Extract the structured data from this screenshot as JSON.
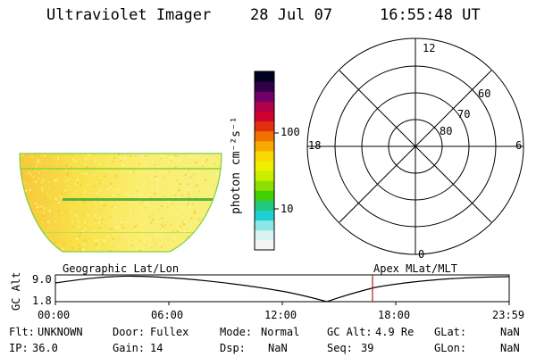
{
  "header": {
    "title": "Ultraviolet Imager",
    "date": "28 Jul 07",
    "time": "16:55:48 UT"
  },
  "colorbar": {
    "label": "photon cm⁻²s⁻¹",
    "ticks": [
      "100",
      "10"
    ],
    "colors": [
      "#f4f4f4",
      "#d9f2f2",
      "#8fe6e6",
      "#1fd0d0",
      "#20c880",
      "#40d000",
      "#8ee000",
      "#c8ee00",
      "#eef000",
      "#f8d800",
      "#f8a800",
      "#f07000",
      "#e03010",
      "#d00030",
      "#b0004a",
      "#700068",
      "#300048",
      "#000020"
    ]
  },
  "polar": {
    "ring_labels": [
      "60",
      "70",
      "80"
    ],
    "clock_labels": {
      "top": "12",
      "bottom": "0",
      "left": "18",
      "right": "6"
    }
  },
  "timeline": {
    "left_title": "Geographic Lat/Lon",
    "right_title": "Apex MLat/MLT",
    "y_label": "GC Alt",
    "y_ticks": [
      "9.0",
      "1.8"
    ],
    "x_ticks": [
      "00:00",
      "06:00",
      "12:00",
      "18:00",
      "23:59"
    ],
    "marker_color": "#b02020"
  },
  "info": {
    "filter_label": "Flt:",
    "filter_value": "UNKNOWN",
    "door_label": "Door:",
    "door_value": "Fullex",
    "mode_label": "Mode:",
    "mode_value": "Normal",
    "gcalt_label": "GC Alt:",
    "gcalt_value": "4.9 Re",
    "glat_label": "GLat:",
    "glat_value": "NaN",
    "ip_label": "IP:",
    "ip_value": "36.0",
    "gain_label": "Gain:",
    "gain_value": "14",
    "dsp_label": "Dsp:",
    "dsp_value": "NaN",
    "seq_label": "Seq:",
    "seq_value": "39",
    "glon_label": "GLon:",
    "glon_value": "NaN"
  }
}
